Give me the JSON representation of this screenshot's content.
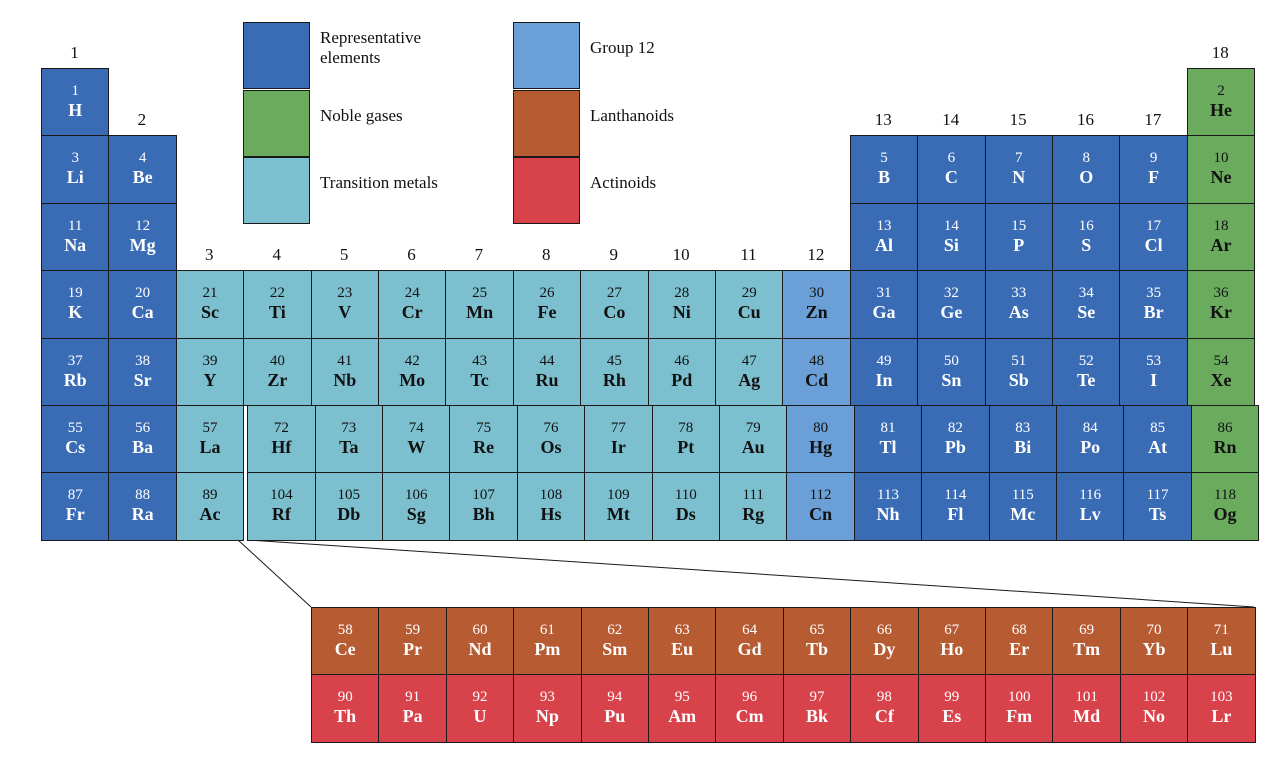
{
  "group_labels": [
    1,
    2,
    3,
    4,
    5,
    6,
    7,
    8,
    9,
    10,
    11,
    12,
    13,
    14,
    15,
    16,
    17,
    18
  ],
  "legend": [
    {
      "label": "Representative elements",
      "color": "#3a6cb6"
    },
    {
      "label": "Noble gases",
      "color": "#6aab5e"
    },
    {
      "label": "Transition metals",
      "color": "#7cc0cf"
    },
    {
      "label": "Group 12",
      "color": "#6a9fd7"
    },
    {
      "label": "Lanthanoids",
      "color": "#b75b33"
    },
    {
      "label": "Actinoids",
      "color": "#d7424b"
    }
  ],
  "table": {
    "rows": [
      [
        {
          "number": 1,
          "symbol": "H"
        },
        null,
        null,
        null,
        null,
        null,
        null,
        null,
        null,
        null,
        null,
        null,
        null,
        null,
        null,
        null,
        null,
        {
          "number": 2,
          "symbol": "He"
        }
      ],
      [
        {
          "number": 3,
          "symbol": "Li"
        },
        {
          "number": 4,
          "symbol": "Be"
        },
        null,
        null,
        null,
        null,
        null,
        null,
        null,
        null,
        null,
        null,
        {
          "number": 5,
          "symbol": "B"
        },
        {
          "number": 6,
          "symbol": "C"
        },
        {
          "number": 7,
          "symbol": "N"
        },
        {
          "number": 8,
          "symbol": "O"
        },
        {
          "number": 9,
          "symbol": "F"
        },
        {
          "number": 10,
          "symbol": "Ne"
        }
      ],
      [
        {
          "number": 11,
          "symbol": "Na"
        },
        {
          "number": 12,
          "symbol": "Mg"
        },
        null,
        null,
        null,
        null,
        null,
        null,
        null,
        null,
        null,
        null,
        {
          "number": 13,
          "symbol": "Al"
        },
        {
          "number": 14,
          "symbol": "Si"
        },
        {
          "number": 15,
          "symbol": "P"
        },
        {
          "number": 16,
          "symbol": "S"
        },
        {
          "number": 17,
          "symbol": "Cl"
        },
        {
          "number": 18,
          "symbol": "Ar"
        }
      ],
      [
        {
          "number": 19,
          "symbol": "K"
        },
        {
          "number": 20,
          "symbol": "Ca"
        },
        {
          "number": 21,
          "symbol": "Sc"
        },
        {
          "number": 22,
          "symbol": "Ti"
        },
        {
          "number": 23,
          "symbol": "V"
        },
        {
          "number": 24,
          "symbol": "Cr"
        },
        {
          "number": 25,
          "symbol": "Mn"
        },
        {
          "number": 26,
          "symbol": "Fe"
        },
        {
          "number": 27,
          "symbol": "Co"
        },
        {
          "number": 28,
          "symbol": "Ni"
        },
        {
          "number": 29,
          "symbol": "Cu"
        },
        {
          "number": 30,
          "symbol": "Zn"
        },
        {
          "number": 31,
          "symbol": "Ga"
        },
        {
          "number": 32,
          "symbol": "Ge"
        },
        {
          "number": 33,
          "symbol": "As"
        },
        {
          "number": 34,
          "symbol": "Se"
        },
        {
          "number": 35,
          "symbol": "Br"
        },
        {
          "number": 36,
          "symbol": "Kr"
        }
      ],
      [
        {
          "number": 37,
          "symbol": "Rb"
        },
        {
          "number": 38,
          "symbol": "Sr"
        },
        {
          "number": 39,
          "symbol": "Y"
        },
        {
          "number": 40,
          "symbol": "Zr"
        },
        {
          "number": 41,
          "symbol": "Nb"
        },
        {
          "number": 42,
          "symbol": "Mo"
        },
        {
          "number": 43,
          "symbol": "Tc"
        },
        {
          "number": 44,
          "symbol": "Ru"
        },
        {
          "number": 45,
          "symbol": "Rh"
        },
        {
          "number": 46,
          "symbol": "Pd"
        },
        {
          "number": 47,
          "symbol": "Ag"
        },
        {
          "number": 48,
          "symbol": "Cd"
        },
        {
          "number": 49,
          "symbol": "In"
        },
        {
          "number": 50,
          "symbol": "Sn"
        },
        {
          "number": 51,
          "symbol": "Sb"
        },
        {
          "number": 52,
          "symbol": "Te"
        },
        {
          "number": 53,
          "symbol": "I"
        },
        {
          "number": 54,
          "symbol": "Xe"
        }
      ],
      [
        {
          "number": 55,
          "symbol": "Cs"
        },
        {
          "number": 56,
          "symbol": "Ba"
        },
        {
          "number": 57,
          "symbol": "La"
        },
        {
          "number": 72,
          "symbol": "Hf"
        },
        {
          "number": 73,
          "symbol": "Ta"
        },
        {
          "number": 74,
          "symbol": "W"
        },
        {
          "number": 75,
          "symbol": "Re"
        },
        {
          "number": 76,
          "symbol": "Os"
        },
        {
          "number": 77,
          "symbol": "Ir"
        },
        {
          "number": 78,
          "symbol": "Pt"
        },
        {
          "number": 79,
          "symbol": "Au"
        },
        {
          "number": 80,
          "symbol": "Hg"
        },
        {
          "number": 81,
          "symbol": "Tl"
        },
        {
          "number": 82,
          "symbol": "Pb"
        },
        {
          "number": 83,
          "symbol": "Bi"
        },
        {
          "number": 84,
          "symbol": "Po"
        },
        {
          "number": 85,
          "symbol": "At"
        },
        {
          "number": 86,
          "symbol": "Rn"
        }
      ],
      [
        {
          "number": 87,
          "symbol": "Fr"
        },
        {
          "number": 88,
          "symbol": "Ra"
        },
        {
          "number": 89,
          "symbol": "Ac"
        },
        {
          "number": 104,
          "symbol": "Rf"
        },
        {
          "number": 105,
          "symbol": "Db"
        },
        {
          "number": 106,
          "symbol": "Sg"
        },
        {
          "number": 107,
          "symbol": "Bh"
        },
        {
          "number": 108,
          "symbol": "Hs"
        },
        {
          "number": 109,
          "symbol": "Mt"
        },
        {
          "number": 110,
          "symbol": "Ds"
        },
        {
          "number": 111,
          "symbol": "Rg"
        },
        {
          "number": 112,
          "symbol": "Cn"
        },
        {
          "number": 113,
          "symbol": "Nh"
        },
        {
          "number": 114,
          "symbol": "Fl"
        },
        {
          "number": 115,
          "symbol": "Mc"
        },
        {
          "number": 116,
          "symbol": "Lv"
        },
        {
          "number": 117,
          "symbol": "Ts"
        },
        {
          "number": 118,
          "symbol": "Og"
        }
      ]
    ]
  },
  "lanthanoids": [
    {
      "number": 58,
      "symbol": "Ce"
    },
    {
      "number": 59,
      "symbol": "Pr"
    },
    {
      "number": 60,
      "symbol": "Nd"
    },
    {
      "number": 61,
      "symbol": "Pm"
    },
    {
      "number": 62,
      "symbol": "Sm"
    },
    {
      "number": 63,
      "symbol": "Eu"
    },
    {
      "number": 64,
      "symbol": "Gd"
    },
    {
      "number": 65,
      "symbol": "Tb"
    },
    {
      "number": 66,
      "symbol": "Dy"
    },
    {
      "number": 67,
      "symbol": "Ho"
    },
    {
      "number": 68,
      "symbol": "Er"
    },
    {
      "number": 69,
      "symbol": "Tm"
    },
    {
      "number": 70,
      "symbol": "Yb"
    },
    {
      "number": 71,
      "symbol": "Lu"
    }
  ],
  "actinoids": [
    {
      "number": 90,
      "symbol": "Th"
    },
    {
      "number": 91,
      "symbol": "Pa"
    },
    {
      "number": 92,
      "symbol": "U"
    },
    {
      "number": 93,
      "symbol": "Np"
    },
    {
      "number": 94,
      "symbol": "Pu"
    },
    {
      "number": 95,
      "symbol": "Am"
    },
    {
      "number": 96,
      "symbol": "Cm"
    },
    {
      "number": 97,
      "symbol": "Bk"
    },
    {
      "number": 98,
      "symbol": "Cf"
    },
    {
      "number": 99,
      "symbol": "Es"
    },
    {
      "number": 100,
      "symbol": "Fm"
    },
    {
      "number": 101,
      "symbol": "Md"
    },
    {
      "number": 102,
      "symbol": "No"
    },
    {
      "number": 103,
      "symbol": "Lr"
    }
  ]
}
